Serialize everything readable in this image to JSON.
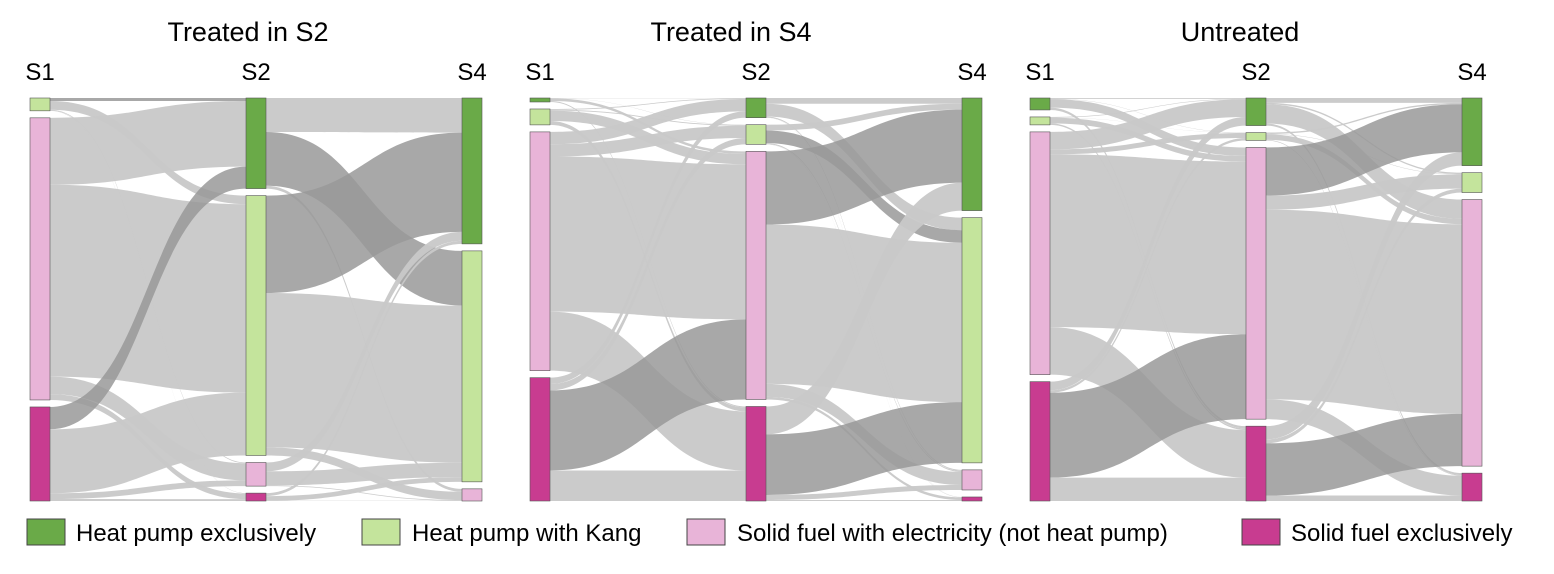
{
  "colors": {
    "Heat pump exclusively": "#6aaa48",
    "Heat pump with Kang": "#c4e49c",
    "Solid fuel with electricity (not heat pump)": "#e8b4d8",
    "Solid fuel exclusively": "#c83c90",
    "flow": "#c8c8c8",
    "flow_highlight": "#999999"
  },
  "chart_data": [
    {
      "type": "sankey",
      "title": "Treated in S2",
      "stages": [
        "S1",
        "S2",
        "S4"
      ],
      "categories": [
        "Heat pump exclusively",
        "Heat pump with Kang",
        "Solid fuel with electricity (not heat pump)",
        "Solid fuel exclusively"
      ],
      "node_shares": {
        "S1": [
          0,
          3,
          66,
          22
        ],
        "S2": [
          23,
          66,
          6,
          2
        ],
        "S4": [
          36,
          57,
          3,
          0
        ]
      },
      "highlighted_transitions": [
        "S1 Heat pump with Kang → S2 Heat pump exclusively",
        "S1 Solid fuel exclusively → S2 Heat pump exclusively",
        "S2 Heat pump exclusively → S4 Heat pump with Kang",
        "S2 Heat pump with Kang → S4 Heat pump exclusively"
      ]
    },
    {
      "type": "sankey",
      "title": "Treated in S4",
      "stages": [
        "S1",
        "S2",
        "S4"
      ],
      "categories": [
        "Heat pump exclusively",
        "Heat pump with Kang",
        "Solid fuel with electricity (not heat pump)",
        "Solid fuel exclusively"
      ],
      "node_shares": {
        "S1": [
          1,
          4,
          60,
          31
        ],
        "S2": [
          5,
          5,
          63,
          24
        ],
        "S4": [
          28,
          61,
          5,
          1
        ]
      },
      "highlighted_transitions": [
        "S1 Solid fuel exclusively → S2 Solid fuel with electricity (not heat pump)",
        "S2 Solid fuel with electricity (not heat pump) → S4 Heat pump exclusively",
        "S2 Heat pump with Kang → S4 Heat pump with Kang",
        "S2 Solid fuel exclusively → S4 Heat pump with Kang"
      ]
    },
    {
      "type": "sankey",
      "title": "Untreated",
      "stages": [
        "S1",
        "S2",
        "S4"
      ],
      "categories": [
        "Heat pump exclusively",
        "Heat pump with Kang",
        "Solid fuel with electricity (not heat pump)",
        "Solid fuel exclusively"
      ],
      "node_shares": {
        "S1": [
          3,
          2,
          61,
          30
        ],
        "S2": [
          7,
          2,
          69,
          19
        ],
        "S4": [
          17,
          5,
          67,
          7
        ]
      },
      "highlighted_transitions": [
        "S1 Solid fuel exclusively → S2 Solid fuel with electricity (not heat pump)",
        "S2 Solid fuel with electricity (not heat pump) → S4 Heat pump exclusively",
        "S2 Solid fuel exclusively → S4 Solid fuel with electricity (not heat pump)"
      ]
    }
  ],
  "legend": [
    {
      "label": "Heat pump exclusively",
      "color_key": "Heat pump exclusively"
    },
    {
      "label": "Heat pump with Kang",
      "color_key": "Heat pump with Kang"
    },
    {
      "label": "Solid fuel with electricity (not heat pump)",
      "color_key": "Solid fuel with electricity (not heat pump)"
    },
    {
      "label": "Solid fuel exclusively",
      "color_key": "Solid fuel exclusively"
    }
  ]
}
